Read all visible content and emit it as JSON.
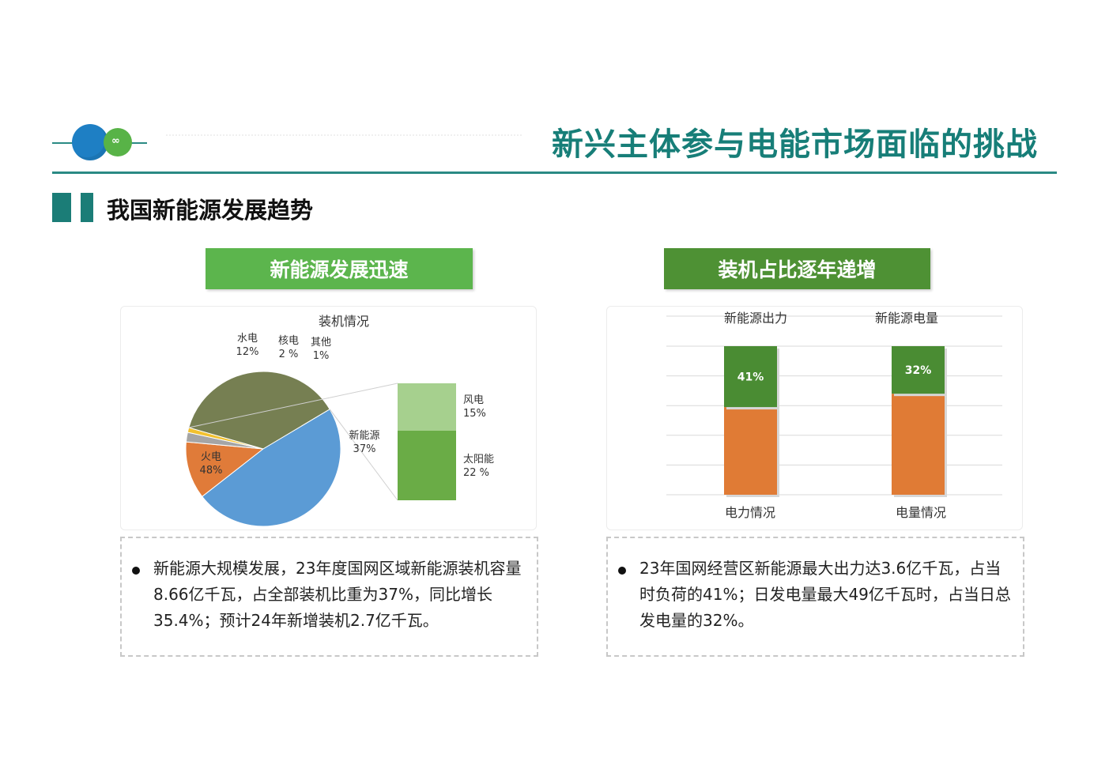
{
  "header": {
    "title": "新兴主体参与电能市场面临的挑战",
    "section_title": "我国新能源发展趋势",
    "logo_glyphs": [
      "",
      "∞"
    ]
  },
  "left_panel": {
    "banner": "新能源发展迅速",
    "paragraph": "新能源大规模发展，23年度国网区域新能源装机容量8.66亿千瓦，占全部装机比重为37%，同比增长35.4%；预计24年新增装机2.7亿千瓦。"
  },
  "right_panel": {
    "banner": "装机占比逐年递增",
    "paragraph": "23年国网经营区新能源最大出力达3.6亿千瓦，占当时负荷的41%；日发电量最大49亿千瓦时，占当日总发电量的32%。"
  },
  "colors": {
    "teal": "#177e78",
    "fire": "#5b9bd5",
    "hydro": "#e07b39",
    "nuclear": "#a5a5a5",
    "other": "#f2c12e",
    "new_energy": "#767f52",
    "wind": "#a6d08e",
    "solar": "#6aac46",
    "bar_green": "#4a8c33",
    "bar_orange": "#e07b35"
  },
  "chart_data": [
    {
      "type": "pie",
      "title": "装机情况",
      "slices": [
        {
          "label": "火电",
          "value_label": "48%",
          "value": 48,
          "color": "#5b9bd5"
        },
        {
          "label": "水电",
          "value_label": "12%",
          "value": 12,
          "color": "#e07b39"
        },
        {
          "label": "核电",
          "value_label": "2 %",
          "value": 2,
          "color": "#a5a5a5"
        },
        {
          "label": "其他",
          "value_label": "1%",
          "value": 1,
          "color": "#f2c12e"
        },
        {
          "label": "新能源",
          "value_label": "37%",
          "value": 37,
          "color": "#767f52"
        }
      ],
      "breakdown": {
        "of": "新能源",
        "items": [
          {
            "label": "风电",
            "value_label": "15%",
            "value": 15,
            "color": "#a6d08e"
          },
          {
            "label": "太阳能",
            "value_label": "22 %",
            "value": 22,
            "color": "#6aac46"
          }
        ]
      }
    },
    {
      "type": "bar",
      "stacked": true,
      "categories": [
        "电力情况",
        "电量情况"
      ],
      "column_titles": [
        "新能源出力",
        "新能源电量"
      ],
      "series": [
        {
          "values": [
            59,
            68
          ],
          "color": "#e07b35"
        },
        {
          "values": [
            41,
            32
          ],
          "value_labels": [
            "41%",
            "32%"
          ],
          "color": "#4a8c33"
        }
      ],
      "ylim": [
        0,
        100
      ],
      "grid": true
    }
  ]
}
